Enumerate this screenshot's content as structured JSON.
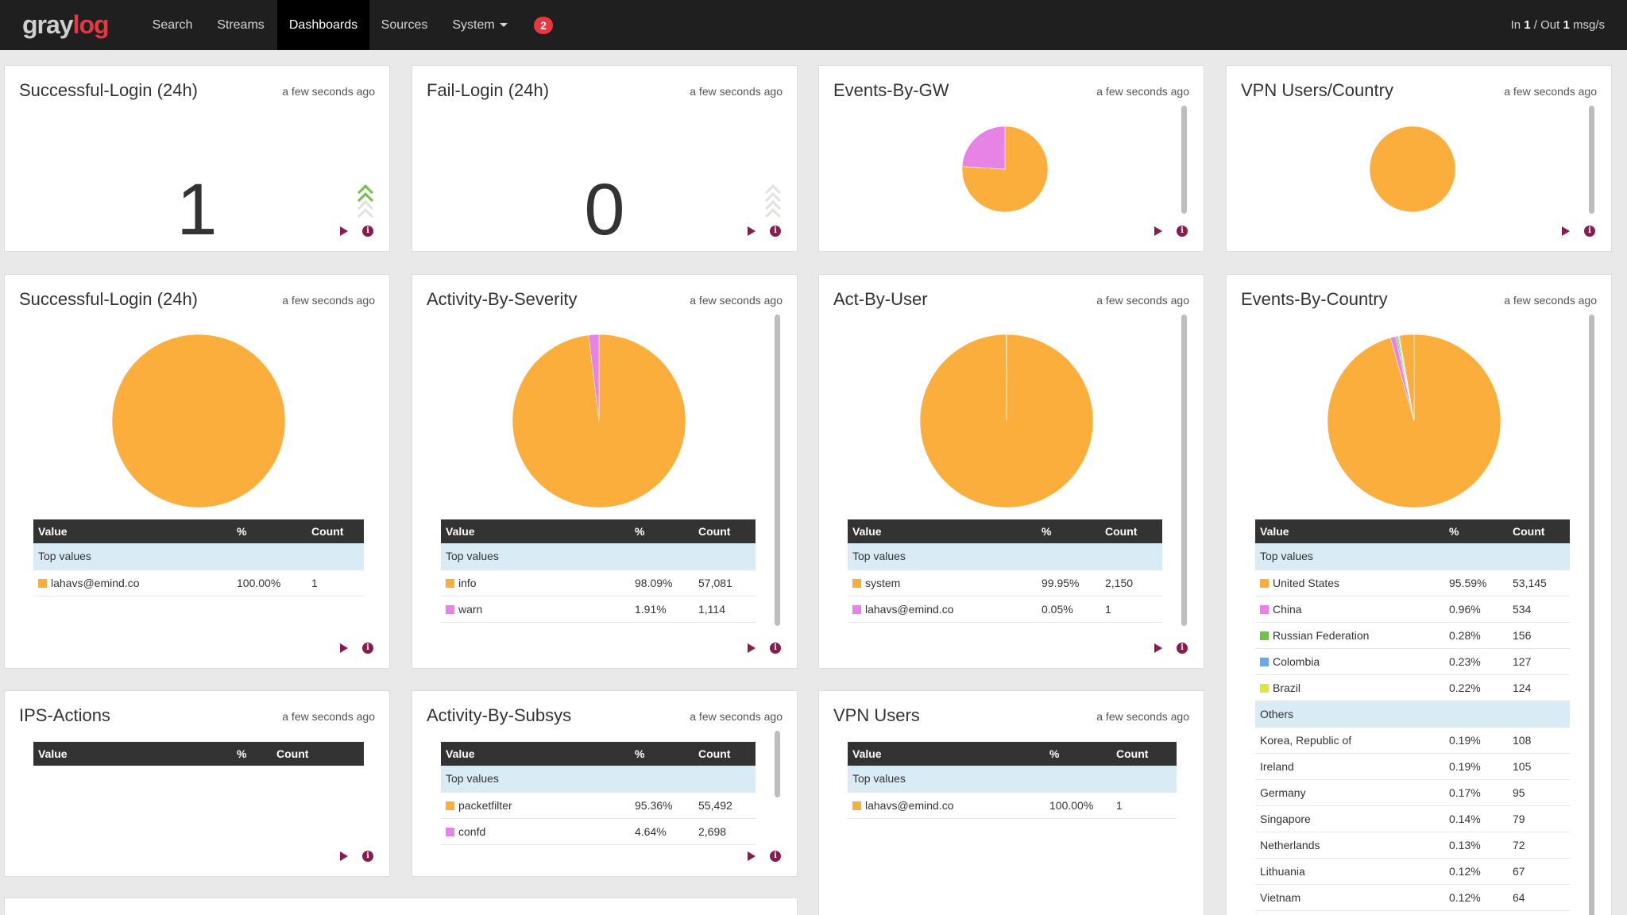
{
  "app": {
    "logo_part1": "gray",
    "logo_part2": "log",
    "throughput_in_label": "In ",
    "throughput_in": "1",
    "throughput_sep": " / Out ",
    "throughput_out": "1",
    "throughput_unit": " msg/s"
  },
  "nav": {
    "search": "Search",
    "streams": "Streams",
    "dashboards": "Dashboards",
    "sources": "Sources",
    "system": "System",
    "notifications_count": "2"
  },
  "icons": {
    "play": "play-icon",
    "info": "info-icon",
    "trend_up": "trend-up-icon",
    "trend_neutral": "trend-neutral-icon"
  },
  "colors": {
    "orange": "#fbae3c",
    "pink": "#e783e4",
    "green": "#70c04a",
    "blue": "#6fa8dc",
    "yellow": "#dfe24a",
    "brand_red": "#e8373f",
    "action": "#8a1b4f"
  },
  "table_headers": {
    "value": "Value",
    "pct": "%",
    "count": "Count",
    "top": "Top values",
    "others": "Others"
  },
  "widgets": {
    "w1": {
      "title": "Successful-Login (24h)",
      "updated": "a few seconds ago",
      "value": "1",
      "trend": "up"
    },
    "w2": {
      "title": "Fail-Login (24h)",
      "updated": "a few seconds ago",
      "value": "0",
      "trend": "none"
    },
    "w3": {
      "title": "Events-By-GW",
      "updated": "a few seconds ago"
    },
    "w4": {
      "title": "VPN Users/Country",
      "updated": "a few seconds ago"
    },
    "w5": {
      "title": "Successful-Login (24h)",
      "updated": "a few seconds ago",
      "rows": [
        {
          "value": "lahavs@emind.co",
          "pct": "100.00%",
          "count": "1",
          "color": "#fbae3c"
        }
      ]
    },
    "w6": {
      "title": "Activity-By-Severity",
      "updated": "a few seconds ago",
      "rows": [
        {
          "value": "info",
          "pct": "98.09%",
          "count": "57,081",
          "color": "#fbae3c"
        },
        {
          "value": "warn",
          "pct": "1.91%",
          "count": "1,114",
          "color": "#e783e4"
        }
      ]
    },
    "w7": {
      "title": "Act-By-User",
      "updated": "a few seconds ago",
      "rows": [
        {
          "value": "system",
          "pct": "99.95%",
          "count": "2,150",
          "color": "#fbae3c"
        },
        {
          "value": "lahavs@emind.co",
          "pct": "0.05%",
          "count": "1",
          "color": "#e783e4"
        }
      ]
    },
    "w8": {
      "title": "Events-By-Country",
      "updated": "a few seconds ago",
      "rows": [
        {
          "value": "United States",
          "pct": "95.59%",
          "count": "53,145",
          "color": "#fbae3c"
        },
        {
          "value": "China",
          "pct": "0.96%",
          "count": "534",
          "color": "#e783e4"
        },
        {
          "value": "Russian Federation",
          "pct": "0.28%",
          "count": "156",
          "color": "#70c04a"
        },
        {
          "value": "Colombia",
          "pct": "0.23%",
          "count": "127",
          "color": "#6fa8dc"
        },
        {
          "value": "Brazil",
          "pct": "0.22%",
          "count": "124",
          "color": "#dfe24a"
        }
      ],
      "others": [
        {
          "value": "Korea, Republic of",
          "pct": "0.19%",
          "count": "108"
        },
        {
          "value": "Ireland",
          "pct": "0.19%",
          "count": "105"
        },
        {
          "value": "Germany",
          "pct": "0.17%",
          "count": "95"
        },
        {
          "value": "Singapore",
          "pct": "0.14%",
          "count": "79"
        },
        {
          "value": "Netherlands",
          "pct": "0.13%",
          "count": "72"
        },
        {
          "value": "Lithuania",
          "pct": "0.12%",
          "count": "67"
        },
        {
          "value": "Vietnam",
          "pct": "0.12%",
          "count": "64"
        }
      ]
    },
    "w9": {
      "title": "IPS-Actions",
      "updated": "a few seconds ago",
      "rows": []
    },
    "w10": {
      "title": "Activity-By-Subsys",
      "updated": "a few seconds ago",
      "rows": [
        {
          "value": "packetfilter",
          "pct": "95.36%",
          "count": "55,492",
          "color": "#fbae3c"
        },
        {
          "value": "confd",
          "pct": "4.64%",
          "count": "2,698",
          "color": "#e783e4"
        }
      ]
    },
    "w11": {
      "title": "VPN Users",
      "updated": "a few seconds ago",
      "rows": [
        {
          "value": "lahavs@emind.co",
          "pct": "100.00%",
          "count": "1",
          "color": "#fbae3c"
        }
      ]
    }
  },
  "chart_data": [
    {
      "type": "pie",
      "chart": "Events-By-GW",
      "slices": [
        {
          "value": 76,
          "color": "#fbae3c"
        },
        {
          "value": 24,
          "color": "#e783e4"
        }
      ]
    },
    {
      "type": "pie",
      "chart": "VPN Users/Country",
      "slices": [
        {
          "value": 100,
          "color": "#fbae3c"
        }
      ]
    },
    {
      "type": "pie",
      "chart": "Successful-Login (24h)",
      "slices": [
        {
          "label": "lahavs@emind.co",
          "value": 100.0,
          "color": "#fbae3c"
        }
      ]
    },
    {
      "type": "pie",
      "chart": "Activity-By-Severity",
      "slices": [
        {
          "label": "info",
          "value": 98.09,
          "color": "#fbae3c"
        },
        {
          "label": "warn",
          "value": 1.91,
          "color": "#e783e4"
        }
      ]
    },
    {
      "type": "pie",
      "chart": "Act-By-User",
      "slices": [
        {
          "label": "system",
          "value": 99.95,
          "color": "#fbae3c"
        },
        {
          "label": "lahavs@emind.co",
          "value": 0.05,
          "color": "#e783e4"
        }
      ]
    },
    {
      "type": "pie",
      "chart": "Events-By-Country",
      "slices": [
        {
          "label": "United States",
          "value": 95.59,
          "color": "#fbae3c"
        },
        {
          "label": "China",
          "value": 0.96,
          "color": "#e783e4"
        },
        {
          "label": "Russian Federation",
          "value": 0.28,
          "color": "#70c04a"
        },
        {
          "label": "Colombia",
          "value": 0.23,
          "color": "#6fa8dc"
        },
        {
          "label": "Brazil",
          "value": 0.22,
          "color": "#dfe24a"
        },
        {
          "label": "Others",
          "value": 2.72,
          "color": "#fbae3c"
        }
      ]
    }
  ]
}
